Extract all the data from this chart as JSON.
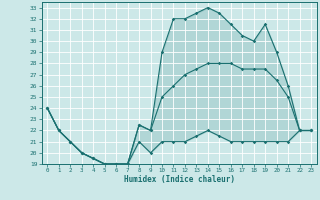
{
  "xlabel": "Humidex (Indice chaleur)",
  "background_color": "#cce8e8",
  "grid_color": "#ffffff",
  "line_color": "#1a7070",
  "x": [
    0,
    1,
    2,
    3,
    4,
    5,
    6,
    7,
    8,
    9,
    10,
    11,
    12,
    13,
    14,
    15,
    16,
    17,
    18,
    19,
    20,
    21,
    22,
    23
  ],
  "y_max": [
    24,
    22,
    21,
    20,
    19.5,
    19,
    19,
    19,
    22.5,
    22,
    29,
    32,
    32,
    32.5,
    33,
    32.5,
    31.5,
    30.5,
    30,
    31.5,
    29,
    26,
    22,
    22
  ],
  "y_mean": [
    24,
    22,
    21,
    20,
    19.5,
    19,
    19,
    19,
    22.5,
    22,
    25,
    26,
    27,
    27.5,
    28,
    28,
    28,
    27.5,
    27.5,
    27.5,
    26.5,
    25,
    22,
    22
  ],
  "y_min": [
    24,
    22,
    21,
    20,
    19.5,
    19,
    19,
    19,
    21,
    20,
    21,
    21,
    21,
    21.5,
    22,
    21.5,
    21,
    21,
    21,
    21,
    21,
    21,
    22,
    22
  ],
  "ylim": [
    19,
    33.5
  ],
  "xlim": [
    -0.5,
    23.5
  ],
  "yticks": [
    19,
    20,
    21,
    22,
    23,
    24,
    25,
    26,
    27,
    28,
    29,
    30,
    31,
    32,
    33
  ],
  "xticks": [
    0,
    1,
    2,
    3,
    4,
    5,
    6,
    7,
    8,
    9,
    10,
    11,
    12,
    13,
    14,
    15,
    16,
    17,
    18,
    19,
    20,
    21,
    22,
    23
  ]
}
